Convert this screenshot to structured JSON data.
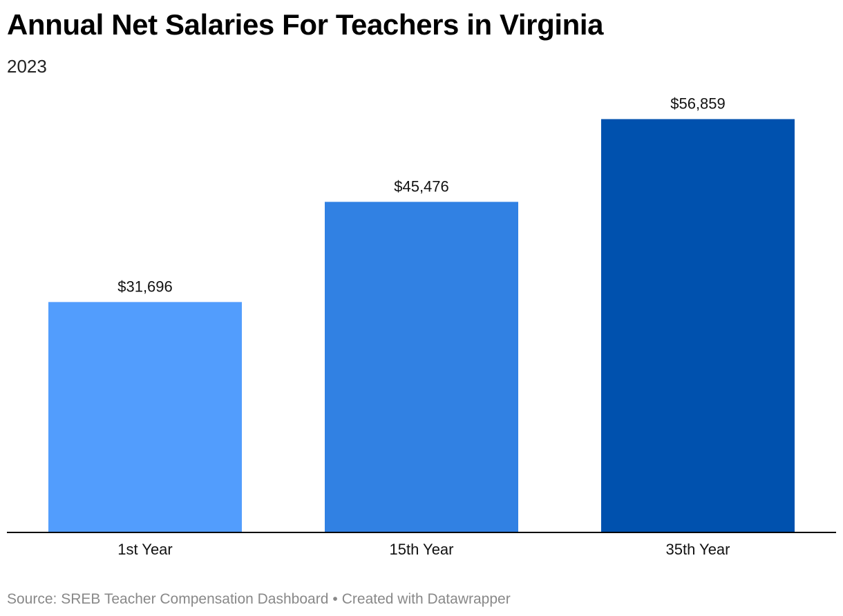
{
  "chart_data": {
    "type": "bar",
    "title": "Annual Net Salaries For Teachers in Virginia",
    "subtitle": "2023",
    "categories": [
      "1st Year",
      "15th Year",
      "35th Year"
    ],
    "values": [
      31696,
      45476,
      56859
    ],
    "value_labels": [
      "$31,696",
      "$45,476",
      "$56,859"
    ],
    "colors": [
      "#529dfd",
      "#3181e3",
      "#0051ae"
    ],
    "ylim": [
      0,
      60000
    ],
    "grid": false,
    "legend": "none",
    "xlabel": "",
    "ylabel": ""
  },
  "footer": {
    "source": "Source: SREB Teacher Compensation Dashboard",
    "separator": "•",
    "credit": "Created with Datawrapper"
  }
}
